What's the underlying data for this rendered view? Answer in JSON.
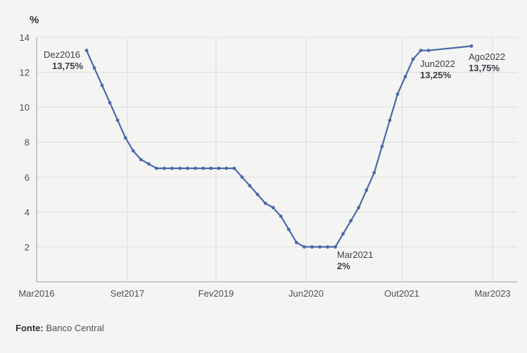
{
  "chart_data": {
    "type": "line",
    "ylabel": "%",
    "ylim": [
      0,
      14
    ],
    "yticks": [
      2,
      4,
      6,
      8,
      10,
      12,
      14
    ],
    "xlabels": [
      "Mar2016",
      "Set2017",
      "Fev2019",
      "Jun2020",
      "Out2021",
      "Mar2023"
    ],
    "grid": "vertical and horizontal",
    "series": [
      {
        "values": [
          13.25,
          12.25,
          11.25,
          10.25,
          9.25,
          8.25,
          7.5,
          7.0,
          6.75,
          6.5,
          6.5,
          6.5,
          6.5,
          6.5,
          6.5,
          6.5,
          6.5,
          6.5,
          6.5,
          6.5,
          6.0,
          5.5,
          5.0,
          4.5,
          4.25,
          3.75,
          3.0,
          2.25,
          2.0,
          2.0,
          2.0,
          2.0,
          2.0,
          2.75,
          3.5,
          4.25,
          5.25,
          6.25,
          7.75,
          9.25,
          10.75,
          11.75,
          12.75,
          13.25,
          13.25,
          13.5
        ],
        "color": "#4a6aa8"
      }
    ],
    "annotations": [
      {
        "period": "Dez2016",
        "value": "13,75%"
      },
      {
        "period": "Mar2021",
        "value": "2%"
      },
      {
        "period": "Jun2022",
        "value": "13,25%"
      },
      {
        "period": "Ago2022",
        "value": "13,75%"
      }
    ]
  },
  "source": {
    "label": "Fonte:",
    "text": "Banco Central"
  }
}
